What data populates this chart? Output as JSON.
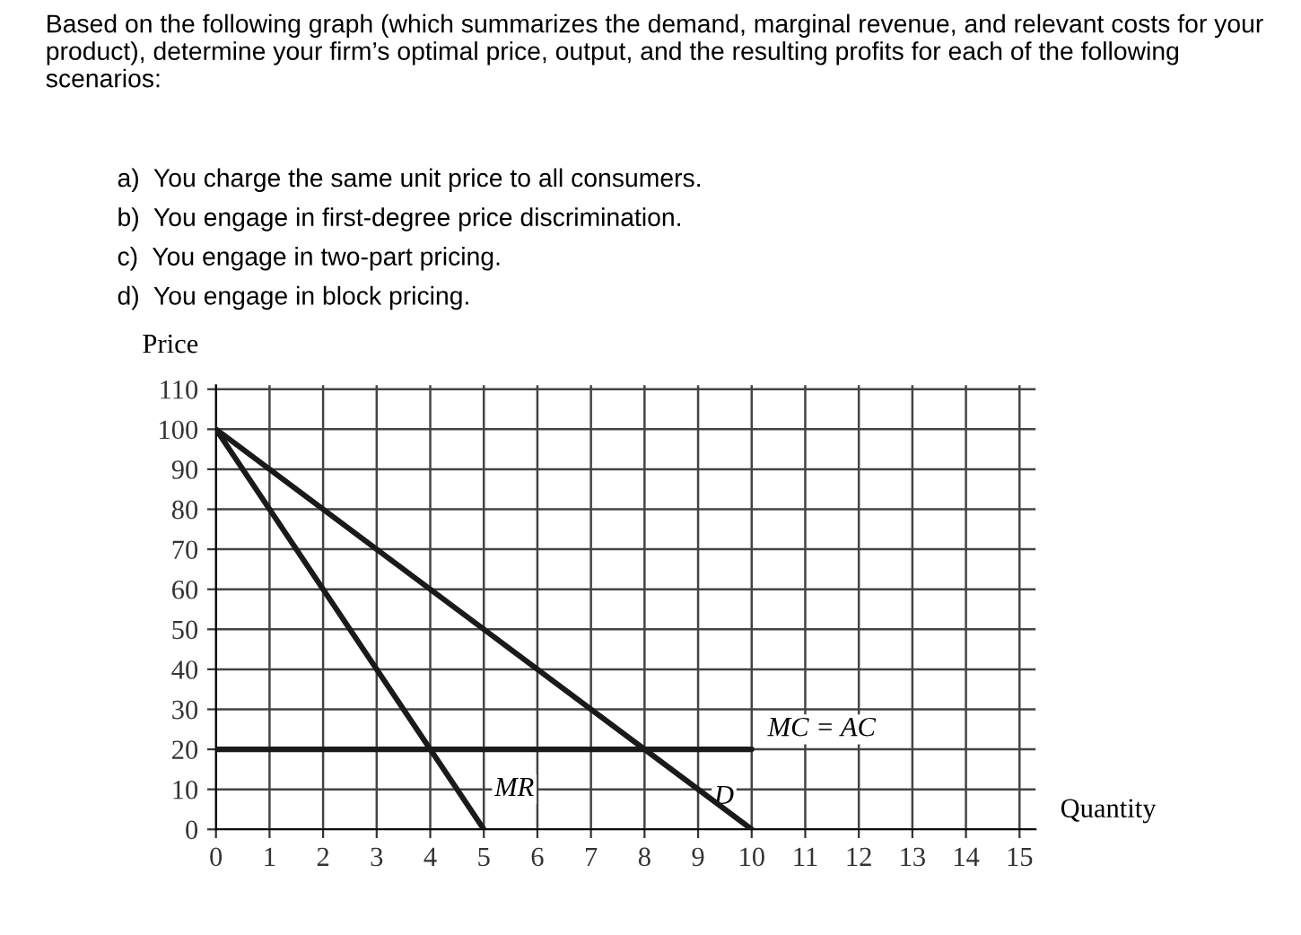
{
  "chart_data": {
    "type": "line",
    "title": "Based on the following graph (which summarizes the demand, marginal revenue, and relevant costs for your product), determine your firm’s optimal price, output, and the resulting profits for each of the following scenarios:",
    "annotations": [
      "a)  You charge the same unit price to all consumers.",
      "b)  You engage in first-degree price discrimination.",
      "c)  You engage in two-part pricing.",
      "d)  You engage in block pricing."
    ],
    "xlabel": "Quantity",
    "ylabel": "Price",
    "series": [
      {
        "name": "D",
        "color": "#1a1a1a",
        "x": [
          0,
          10
        ],
        "values": [
          100,
          0
        ]
      },
      {
        "name": "MR",
        "color": "#1a1a1a",
        "x": [
          0,
          5
        ],
        "values": [
          100,
          0
        ]
      },
      {
        "name": "MC = AC",
        "color": "#1a1a1a",
        "x": [
          0,
          10
        ],
        "values": [
          20,
          20
        ]
      }
    ],
    "xlim": [
      0,
      15.3
    ],
    "ylim": [
      0,
      111
    ],
    "xticks": [
      0,
      1,
      2,
      3,
      4,
      5,
      6,
      7,
      8,
      9,
      10,
      11,
      12,
      13,
      14,
      15
    ],
    "yticks": [
      0,
      10,
      20,
      30,
      40,
      50,
      60,
      70,
      80,
      90,
      100,
      110
    ],
    "grid": true,
    "legend": false,
    "marker": "none",
    "line_style": "solid"
  }
}
